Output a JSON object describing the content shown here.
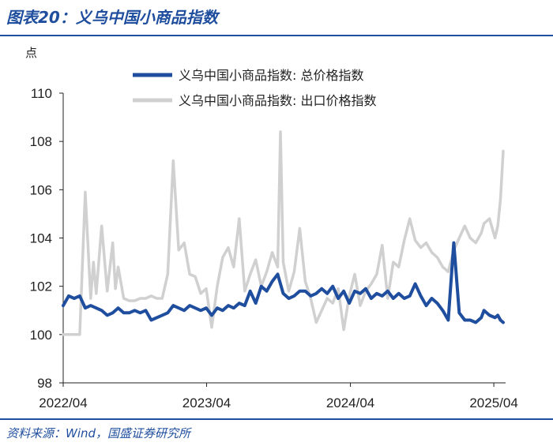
{
  "figure": {
    "title": "图表20：义乌中国小商品指数",
    "source": "资料来源：Wind，国盛证券研究所"
  },
  "colors": {
    "accent": "#1f4e9e",
    "series_total": "#1f4e9e",
    "series_export": "#d0d0d0"
  },
  "chart_data": {
    "type": "line",
    "ylabel": "点",
    "ylim": [
      98,
      110
    ],
    "y_ticks": [
      "98",
      "100",
      "102",
      "104",
      "106",
      "108",
      "110"
    ],
    "x_ticks": [
      "2022/04",
      "2023/04",
      "2024/04",
      "2025/04"
    ],
    "grid": false,
    "legend": "top-center",
    "series": [
      {
        "name": "义乌中国小商品指数: 总价格指数",
        "color": "#1f4e9e",
        "x": [
          "2022-04-01",
          "2022-04-15",
          "2022-04-29",
          "2022-05-13",
          "2022-05-27",
          "2022-06-10",
          "2022-06-24",
          "2022-07-08",
          "2022-07-22",
          "2022-08-05",
          "2022-08-19",
          "2022-09-02",
          "2022-09-16",
          "2022-09-30",
          "2022-10-14",
          "2022-10-28",
          "2022-11-11",
          "2022-11-25",
          "2022-12-09",
          "2022-12-23",
          "2023-01-06",
          "2023-01-20",
          "2023-02-03",
          "2023-02-17",
          "2023-03-03",
          "2023-03-17",
          "2023-03-31",
          "2023-04-14",
          "2023-04-28",
          "2023-05-12",
          "2023-05-26",
          "2023-06-09",
          "2023-06-23",
          "2023-07-07",
          "2023-07-21",
          "2023-08-04",
          "2023-08-18",
          "2023-09-01",
          "2023-09-15",
          "2023-09-29",
          "2023-10-13",
          "2023-10-27",
          "2023-11-10",
          "2023-11-24",
          "2023-12-08",
          "2023-12-22",
          "2024-01-05",
          "2024-01-19",
          "2024-02-02",
          "2024-02-16",
          "2024-03-01",
          "2024-03-15",
          "2024-03-29",
          "2024-04-12",
          "2024-04-26",
          "2024-05-10",
          "2024-05-24",
          "2024-06-07",
          "2024-06-21",
          "2024-07-05",
          "2024-07-19",
          "2024-08-02",
          "2024-08-16",
          "2024-08-30",
          "2024-09-13",
          "2024-09-27",
          "2024-10-11",
          "2024-10-25",
          "2024-11-08",
          "2024-11-22",
          "2024-12-06",
          "2024-12-20",
          "2025-01-03",
          "2025-01-17",
          "2025-01-31",
          "2025-02-14",
          "2025-02-28",
          "2025-03-07",
          "2025-03-21",
          "2025-04-04",
          "2025-04-11",
          "2025-04-18",
          "2025-04-25"
        ],
        "values": [
          101.2,
          101.6,
          101.5,
          101.6,
          101.1,
          101.2,
          101.1,
          101.0,
          100.8,
          100.9,
          101.1,
          100.9,
          100.9,
          101.0,
          100.9,
          101.0,
          100.6,
          100.7,
          100.8,
          100.9,
          101.2,
          101.1,
          101.0,
          101.2,
          101.1,
          101.0,
          101.1,
          100.8,
          101.1,
          101.0,
          101.2,
          101.1,
          101.3,
          101.2,
          101.8,
          101.3,
          102.0,
          101.8,
          102.2,
          102.5,
          101.7,
          101.5,
          101.6,
          101.8,
          101.8,
          101.6,
          101.7,
          101.9,
          101.7,
          102.0,
          101.5,
          101.8,
          101.3,
          101.8,
          101.7,
          101.9,
          101.5,
          101.7,
          101.6,
          101.8,
          101.5,
          101.7,
          101.5,
          101.6,
          102.1,
          101.6,
          101.2,
          101.5,
          101.3,
          101.0,
          100.6,
          103.8,
          100.9,
          100.6,
          100.6,
          100.5,
          100.7,
          101.0,
          100.8,
          100.7,
          100.8,
          100.6,
          100.5
        ]
      },
      {
        "name": "义乌中国小商品指数: 出口价格指数",
        "color": "#d0d0d0",
        "x": [
          "2022-04-01",
          "2022-04-15",
          "2022-04-29",
          "2022-05-13",
          "2022-05-27",
          "2022-06-10",
          "2022-06-17",
          "2022-06-24",
          "2022-07-08",
          "2022-07-22",
          "2022-08-05",
          "2022-08-12",
          "2022-08-19",
          "2022-09-02",
          "2022-09-16",
          "2022-09-30",
          "2022-10-14",
          "2022-10-28",
          "2022-11-11",
          "2022-11-25",
          "2022-12-09",
          "2022-12-23",
          "2023-01-06",
          "2023-01-20",
          "2023-02-03",
          "2023-02-17",
          "2023-03-03",
          "2023-03-17",
          "2023-03-31",
          "2023-04-14",
          "2023-04-28",
          "2023-05-12",
          "2023-05-26",
          "2023-06-09",
          "2023-06-23",
          "2023-07-07",
          "2023-07-21",
          "2023-08-04",
          "2023-08-18",
          "2023-09-01",
          "2023-09-15",
          "2023-09-29",
          "2023-10-06",
          "2023-10-13",
          "2023-10-27",
          "2023-11-10",
          "2023-11-24",
          "2023-12-08",
          "2023-12-22",
          "2024-01-05",
          "2024-01-19",
          "2024-02-02",
          "2024-02-16",
          "2024-03-01",
          "2024-03-15",
          "2024-03-29",
          "2024-04-12",
          "2024-04-26",
          "2024-05-10",
          "2024-05-24",
          "2024-06-07",
          "2024-06-21",
          "2024-07-05",
          "2024-07-19",
          "2024-08-02",
          "2024-08-16",
          "2024-08-30",
          "2024-09-13",
          "2024-09-27",
          "2024-10-11",
          "2024-10-25",
          "2024-11-08",
          "2024-11-22",
          "2024-12-06",
          "2024-12-20",
          "2025-01-03",
          "2025-01-17",
          "2025-01-31",
          "2025-02-14",
          "2025-02-28",
          "2025-03-07",
          "2025-03-21",
          "2025-04-04",
          "2025-04-11",
          "2025-04-18",
          "2025-04-25"
        ],
        "values": [
          100.0,
          100.0,
          100.0,
          100.0,
          105.9,
          101.5,
          103.0,
          101.7,
          104.5,
          101.8,
          103.8,
          101.9,
          102.8,
          101.5,
          101.4,
          101.4,
          101.5,
          101.5,
          101.6,
          101.5,
          101.5,
          102.5,
          107.2,
          103.5,
          103.8,
          102.5,
          102.4,
          101.7,
          101.9,
          100.3,
          102.0,
          103.2,
          103.6,
          102.8,
          104.8,
          101.8,
          102.5,
          103.1,
          102.0,
          102.6,
          103.4,
          102.8,
          108.4,
          103.0,
          101.8,
          102.6,
          104.4,
          102.2,
          101.5,
          100.5,
          101.0,
          101.5,
          101.3,
          101.9,
          100.2,
          101.6,
          102.5,
          101.2,
          101.8,
          102.1,
          102.5,
          103.7,
          101.5,
          103.0,
          102.8,
          103.9,
          104.8,
          103.9,
          103.6,
          103.8,
          103.4,
          103.2,
          102.8,
          102.6,
          103.5,
          104.0,
          104.5,
          104.0,
          103.8,
          104.2,
          104.6,
          104.8,
          104.0,
          104.5,
          105.6,
          107.6
        ]
      }
    ]
  }
}
